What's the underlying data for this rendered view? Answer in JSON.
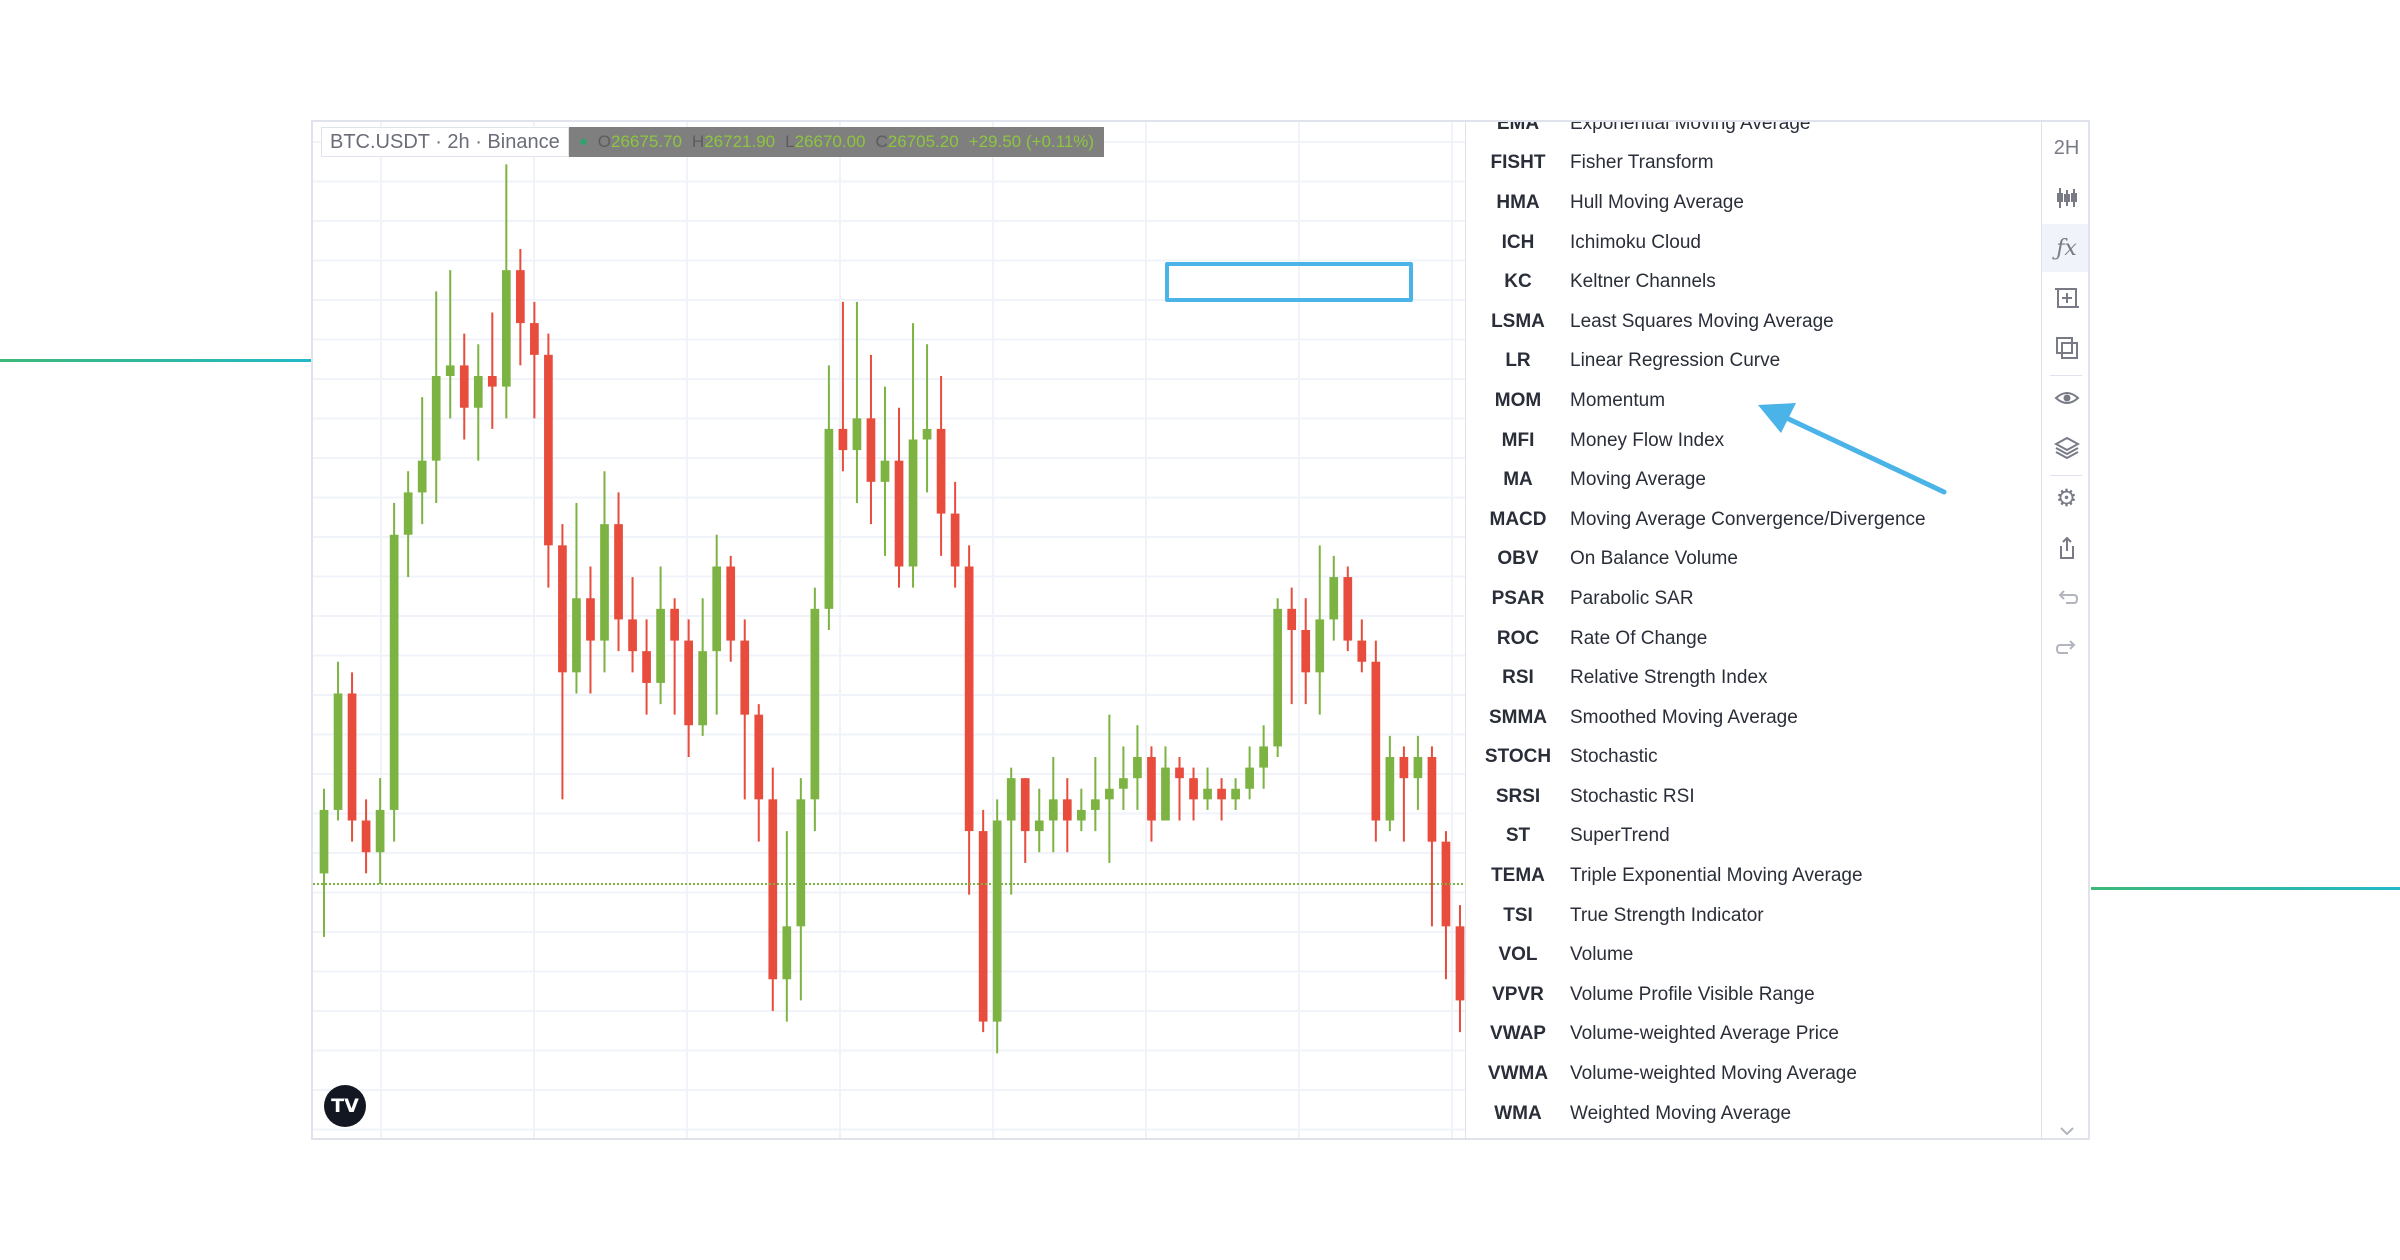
{
  "legend": {
    "symbol": "BTC.USDT · 2h · Binance",
    "o_label": "O",
    "o_value": "26675.70",
    "h_label": "H",
    "h_value": "26721.90",
    "l_label": "L",
    "l_value": "26670.00",
    "c_label": "C",
    "c_value": "26705.20",
    "change": "+29.50 (+0.11%)"
  },
  "logo": {
    "text": "TV"
  },
  "indicators": [
    {
      "abbr": "EMA",
      "name": "Exponential Moving Average"
    },
    {
      "abbr": "FISHT",
      "name": "Fisher Transform"
    },
    {
      "abbr": "HMA",
      "name": "Hull Moving Average"
    },
    {
      "abbr": "ICH",
      "name": "Ichimoku Cloud"
    },
    {
      "abbr": "KC",
      "name": "Keltner Channels"
    },
    {
      "abbr": "LSMA",
      "name": "Least Squares Moving Average"
    },
    {
      "abbr": "LR",
      "name": "Linear Regression Curve"
    },
    {
      "abbr": "MOM",
      "name": "Momentum"
    },
    {
      "abbr": "MFI",
      "name": "Money Flow Index"
    },
    {
      "abbr": "MA",
      "name": "Moving Average"
    },
    {
      "abbr": "MACD",
      "name": "Moving Average Convergence/Divergence"
    },
    {
      "abbr": "OBV",
      "name": "On Balance Volume"
    },
    {
      "abbr": "PSAR",
      "name": "Parabolic SAR"
    },
    {
      "abbr": "ROC",
      "name": "Rate Of Change"
    },
    {
      "abbr": "RSI",
      "name": "Relative Strength Index"
    },
    {
      "abbr": "SMMA",
      "name": "Smoothed Moving Average"
    },
    {
      "abbr": "STOCH",
      "name": "Stochastic"
    },
    {
      "abbr": "SRSI",
      "name": "Stochastic RSI"
    },
    {
      "abbr": "ST",
      "name": "SuperTrend"
    },
    {
      "abbr": "TEMA",
      "name": "Triple Exponential Moving Average"
    },
    {
      "abbr": "TSI",
      "name": "True Strength Indicator"
    },
    {
      "abbr": "VOL",
      "name": "Volume"
    },
    {
      "abbr": "VPVR",
      "name": "Volume Profile Visible Range"
    },
    {
      "abbr": "VWAP",
      "name": "Volume-weighted Average Price"
    },
    {
      "abbr": "VWMA",
      "name": "Volume-weighted Moving Average"
    },
    {
      "abbr": "WMA",
      "name": "Weighted Moving Average"
    }
  ],
  "highlighted_indicator": "MOM",
  "toolbar": {
    "interval_label": "2H",
    "buttons": [
      "candles-icon",
      "fx-icon",
      "crosshair-add-icon",
      "compare-icon",
      "eye-icon",
      "layers-icon",
      "gear-icon",
      "share-icon",
      "undo-icon",
      "redo-icon",
      "chevron-down-icon"
    ]
  },
  "colors": {
    "up": "#7cb342",
    "down": "#e74c3c",
    "highlight": "#4ab3e8",
    "accent_line": "#22b8c8"
  },
  "candles": [
    [
      0.55,
      0.61,
      0.49,
      0.63
    ],
    [
      0.61,
      0.72,
      0.6,
      0.75
    ],
    [
      0.72,
      0.6,
      0.58,
      0.74
    ],
    [
      0.6,
      0.57,
      0.55,
      0.62
    ],
    [
      0.57,
      0.61,
      0.54,
      0.64
    ],
    [
      0.61,
      0.87,
      0.58,
      0.9
    ],
    [
      0.87,
      0.91,
      0.83,
      0.93
    ],
    [
      0.91,
      0.94,
      0.88,
      1.0
    ],
    [
      0.94,
      1.02,
      0.9,
      1.1
    ],
    [
      1.02,
      1.03,
      0.98,
      1.12
    ],
    [
      1.03,
      0.99,
      0.96,
      1.06
    ],
    [
      0.99,
      1.02,
      0.94,
      1.05
    ],
    [
      1.02,
      1.01,
      0.97,
      1.08
    ],
    [
      1.01,
      1.12,
      0.98,
      1.22
    ],
    [
      1.12,
      1.07,
      1.03,
      1.14
    ],
    [
      1.07,
      1.04,
      0.98,
      1.09
    ],
    [
      1.04,
      0.86,
      0.82,
      1.06
    ],
    [
      0.86,
      0.74,
      0.62,
      0.88
    ],
    [
      0.74,
      0.81,
      0.72,
      0.9
    ],
    [
      0.81,
      0.77,
      0.72,
      0.84
    ],
    [
      0.77,
      0.88,
      0.74,
      0.93
    ],
    [
      0.88,
      0.79,
      0.76,
      0.91
    ],
    [
      0.79,
      0.76,
      0.74,
      0.83
    ],
    [
      0.76,
      0.73,
      0.7,
      0.79
    ],
    [
      0.73,
      0.8,
      0.71,
      0.84
    ],
    [
      0.8,
      0.77,
      0.7,
      0.81
    ],
    [
      0.77,
      0.69,
      0.66,
      0.79
    ],
    [
      0.69,
      0.76,
      0.68,
      0.81
    ],
    [
      0.76,
      0.84,
      0.7,
      0.87
    ],
    [
      0.84,
      0.77,
      0.75,
      0.85
    ],
    [
      0.77,
      0.7,
      0.62,
      0.79
    ],
    [
      0.7,
      0.62,
      0.58,
      0.71
    ],
    [
      0.62,
      0.45,
      0.42,
      0.65
    ],
    [
      0.45,
      0.5,
      0.41,
      0.59
    ],
    [
      0.5,
      0.62,
      0.43,
      0.64
    ],
    [
      0.62,
      0.8,
      0.59,
      0.82
    ],
    [
      0.8,
      0.97,
      0.78,
      1.03
    ],
    [
      0.97,
      0.95,
      0.93,
      1.09
    ],
    [
      0.95,
      0.98,
      0.9,
      1.09
    ],
    [
      0.98,
      0.92,
      0.88,
      1.04
    ],
    [
      0.92,
      0.94,
      0.85,
      1.01
    ],
    [
      0.94,
      0.84,
      0.82,
      0.99
    ],
    [
      0.84,
      0.96,
      0.82,
      1.07
    ],
    [
      0.96,
      0.97,
      0.91,
      1.05
    ],
    [
      0.97,
      0.89,
      0.85,
      1.02
    ],
    [
      0.89,
      0.84,
      0.82,
      0.92
    ],
    [
      0.84,
      0.59,
      0.53,
      0.86
    ],
    [
      0.59,
      0.41,
      0.4,
      0.61
    ],
    [
      0.41,
      0.6,
      0.38,
      0.62
    ],
    [
      0.6,
      0.64,
      0.53,
      0.65
    ],
    [
      0.64,
      0.59,
      0.56,
      0.64
    ],
    [
      0.59,
      0.6,
      0.57,
      0.63
    ],
    [
      0.6,
      0.62,
      0.57,
      0.66
    ],
    [
      0.62,
      0.6,
      0.57,
      0.64
    ],
    [
      0.6,
      0.61,
      0.59,
      0.63
    ],
    [
      0.61,
      0.62,
      0.59,
      0.66
    ],
    [
      0.62,
      0.63,
      0.56,
      0.7
    ],
    [
      0.63,
      0.64,
      0.61,
      0.67
    ],
    [
      0.64,
      0.66,
      0.61,
      0.69
    ],
    [
      0.66,
      0.6,
      0.58,
      0.67
    ],
    [
      0.6,
      0.65,
      0.6,
      0.67
    ],
    [
      0.65,
      0.64,
      0.6,
      0.66
    ],
    [
      0.64,
      0.62,
      0.6,
      0.65
    ],
    [
      0.62,
      0.63,
      0.61,
      0.65
    ],
    [
      0.63,
      0.62,
      0.6,
      0.64
    ],
    [
      0.62,
      0.63,
      0.61,
      0.64
    ],
    [
      0.63,
      0.65,
      0.62,
      0.67
    ],
    [
      0.65,
      0.67,
      0.63,
      0.69
    ],
    [
      0.67,
      0.8,
      0.66,
      0.81
    ],
    [
      0.8,
      0.78,
      0.71,
      0.82
    ],
    [
      0.78,
      0.74,
      0.71,
      0.81
    ],
    [
      0.74,
      0.79,
      0.7,
      0.86
    ],
    [
      0.79,
      0.83,
      0.77,
      0.85
    ],
    [
      0.83,
      0.77,
      0.76,
      0.84
    ],
    [
      0.77,
      0.75,
      0.74,
      0.79
    ],
    [
      0.75,
      0.6,
      0.58,
      0.77
    ],
    [
      0.6,
      0.66,
      0.59,
      0.68
    ],
    [
      0.66,
      0.64,
      0.58,
      0.67
    ],
    [
      0.64,
      0.66,
      0.61,
      0.68
    ],
    [
      0.66,
      0.58,
      0.5,
      0.67
    ],
    [
      0.58,
      0.5,
      0.45,
      0.59
    ],
    [
      0.5,
      0.43,
      0.4,
      0.52
    ]
  ]
}
